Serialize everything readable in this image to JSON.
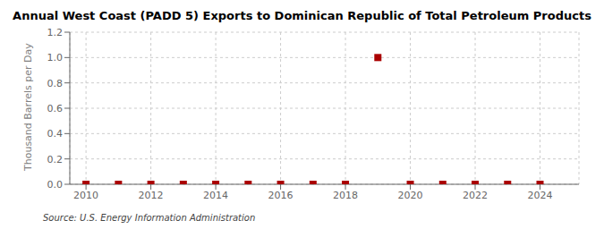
{
  "chart_data": {
    "type": "scatter",
    "title": "Annual West Coast (PADD 5) Exports to Dominican Republic of Total Petroleum Products",
    "ylabel": "Thousand Barrels per Day",
    "annotations": [
      "Source: U.S. Energy Information Administration"
    ],
    "x": [
      2010,
      2011,
      2012,
      2013,
      2014,
      2015,
      2016,
      2017,
      2018,
      2019,
      2020,
      2021,
      2022,
      2023,
      2024
    ],
    "values": [
      0.0,
      0.0,
      0.0,
      0.0,
      0.0,
      0.0,
      0.0,
      0.0,
      0.0,
      1.0,
      0.0,
      0.0,
      0.0,
      0.0,
      0.0
    ],
    "color": "#aa0000",
    "marker": "square",
    "xlim": [
      2009.5,
      2025.2
    ],
    "ylim": [
      0.0,
      1.2
    ],
    "xticks": [
      2010,
      2012,
      2014,
      2016,
      2018,
      2020,
      2022,
      2024
    ],
    "yticks": [
      {
        "value": 0.0,
        "label": "0.0"
      },
      0.2,
      0.4,
      0.6,
      0.8,
      {
        "value": 1.0,
        "label": "1.0"
      },
      1.2
    ],
    "grid": true
  }
}
